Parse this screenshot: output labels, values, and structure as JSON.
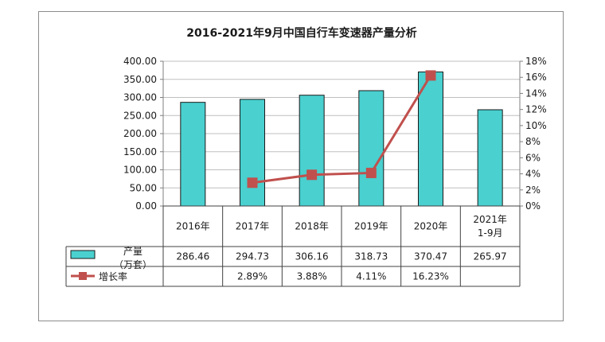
{
  "chart_data": {
    "type": "bar",
    "title": "2016-2021年9月中国自行车变速器产量分析",
    "categories": [
      "2016年",
      "2017年",
      "2018年",
      "2019年",
      "2020年",
      "2021年\n1-9月"
    ],
    "series": [
      {
        "name": "产量\n（万套）",
        "type": "bar",
        "axis": "left",
        "color": "#49d0cf",
        "values": [
          286.46,
          294.73,
          306.16,
          318.73,
          370.47,
          265.97
        ],
        "labels": [
          "286.46",
          "294.73",
          "306.16",
          "318.73",
          "370.47",
          "265.97"
        ]
      },
      {
        "name": "增长率",
        "type": "line",
        "axis": "right",
        "color": "#c0504d",
        "values": [
          null,
          2.89,
          3.88,
          4.11,
          16.23,
          null
        ],
        "labels": [
          "",
          "2.89%",
          "3.88%",
          "4.11%",
          "16.23%",
          ""
        ]
      }
    ],
    "ylim_left": [
      0,
      400
    ],
    "ylim_right": [
      0,
      18
    ],
    "left_ticks": [
      "0.00",
      "50.00",
      "100.00",
      "150.00",
      "200.00",
      "250.00",
      "300.00",
      "350.00",
      "400.00"
    ],
    "right_ticks": [
      "0%",
      "2%",
      "4%",
      "6%",
      "8%",
      "10%",
      "12%",
      "14%",
      "16%",
      "18%"
    ],
    "grid": true,
    "legend": "data-table"
  }
}
